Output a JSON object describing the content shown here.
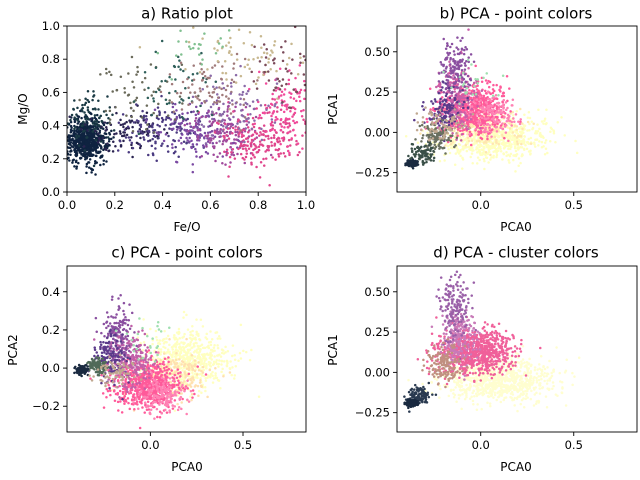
{
  "chart_data": [
    {
      "id": "a",
      "type": "scatter",
      "title": "a) Ratio plot",
      "xlabel": "Fe/O",
      "ylabel": "Mg/O",
      "xlim": [
        0.0,
        1.0
      ],
      "ylim": [
        0.0,
        1.0
      ],
      "xticks": [
        0.0,
        0.2,
        0.4,
        0.6,
        0.8,
        1.0
      ],
      "xtick_labels": [
        "0.0",
        "0.2",
        "0.4",
        "0.6",
        "0.8",
        "1.0"
      ],
      "yticks": [
        0.0,
        0.2,
        0.4,
        0.6,
        0.8,
        1.0
      ],
      "ytick_labels": [
        "0.0",
        "0.2",
        "0.4",
        "0.6",
        "0.8",
        "1.0"
      ],
      "grid": false,
      "coloring": "point colors",
      "clusters": [
        {
          "color": "#0f2340",
          "x": 0.08,
          "y": 0.31,
          "sx": 0.045,
          "sy": 0.065,
          "n": 650
        },
        {
          "color": "#1b3b45",
          "x": 0.1,
          "y": 0.46,
          "sx": 0.05,
          "sy": 0.09,
          "n": 90
        },
        {
          "color": "#2a2350",
          "x": 0.25,
          "y": 0.36,
          "sx": 0.08,
          "sy": 0.06,
          "n": 90
        },
        {
          "color": "#4a3a80",
          "x": 0.4,
          "y": 0.38,
          "sx": 0.08,
          "sy": 0.08,
          "n": 130
        },
        {
          "color": "#7b4aa3",
          "x": 0.55,
          "y": 0.36,
          "sx": 0.08,
          "sy": 0.08,
          "n": 150
        },
        {
          "color": "#a04a9c",
          "x": 0.66,
          "y": 0.36,
          "sx": 0.08,
          "sy": 0.09,
          "n": 130
        },
        {
          "color": "#e0458c",
          "x": 0.82,
          "y": 0.33,
          "sx": 0.1,
          "sy": 0.09,
          "n": 200
        },
        {
          "color": "#f04a9a",
          "x": 0.92,
          "y": 0.5,
          "sx": 0.06,
          "sy": 0.13,
          "n": 120
        },
        {
          "color": "#6a6a5a",
          "x": 0.3,
          "y": 0.58,
          "sx": 0.1,
          "sy": 0.1,
          "n": 60
        },
        {
          "color": "#2f5f5a",
          "x": 0.45,
          "y": 0.62,
          "sx": 0.08,
          "sy": 0.1,
          "n": 50
        },
        {
          "color": "#a07a7a",
          "x": 0.6,
          "y": 0.64,
          "sx": 0.09,
          "sy": 0.1,
          "n": 80
        },
        {
          "color": "#8a6aa8",
          "x": 0.7,
          "y": 0.5,
          "sx": 0.09,
          "sy": 0.1,
          "n": 80
        },
        {
          "color": "#c8b890",
          "x": 0.75,
          "y": 0.82,
          "sx": 0.12,
          "sy": 0.1,
          "n": 70
        },
        {
          "color": "#80c090",
          "x": 0.55,
          "y": 0.88,
          "sx": 0.1,
          "sy": 0.08,
          "n": 25
        },
        {
          "color": "#7a4a5a",
          "x": 0.9,
          "y": 0.72,
          "sx": 0.07,
          "sy": 0.12,
          "n": 50
        }
      ]
    },
    {
      "id": "b",
      "type": "scatter",
      "title": "b) PCA - point colors",
      "xlabel": "PCA0",
      "ylabel": "PCA1",
      "xlim": [
        -0.45,
        0.84
      ],
      "ylim": [
        -0.37,
        0.66
      ],
      "xticks": [
        0.0,
        0.5
      ],
      "xtick_labels": [
        "0.0",
        "0.5"
      ],
      "yticks": [
        -0.25,
        0.0,
        0.25,
        0.5
      ],
      "ytick_labels": [
        "−0.25",
        "0.00",
        "0.25",
        "0.50"
      ],
      "grid": false,
      "coloring": "point colors",
      "clusters": [
        {
          "color": "#ffffc0",
          "x": 0.07,
          "y": -0.03,
          "sx": 0.14,
          "sy": 0.07,
          "n": 750
        },
        {
          "color": "#ffe6b0",
          "x": 0.02,
          "y": 0.03,
          "sx": 0.1,
          "sy": 0.06,
          "n": 200
        },
        {
          "color": "#ff5a9a",
          "x": -0.05,
          "y": 0.14,
          "sx": 0.09,
          "sy": 0.08,
          "n": 650
        },
        {
          "color": "#ff82b4",
          "x": 0.05,
          "y": 0.12,
          "sx": 0.08,
          "sy": 0.06,
          "n": 150
        },
        {
          "color": "#c860a8",
          "x": -0.13,
          "y": 0.22,
          "sx": 0.05,
          "sy": 0.1,
          "n": 200
        },
        {
          "color": "#8a50a0",
          "x": -0.14,
          "y": 0.4,
          "sx": 0.04,
          "sy": 0.1,
          "n": 150
        },
        {
          "color": "#5a3a8a",
          "x": -0.2,
          "y": 0.15,
          "sx": 0.05,
          "sy": 0.07,
          "n": 120
        },
        {
          "color": "#6a7060",
          "x": -0.24,
          "y": -0.03,
          "sx": 0.04,
          "sy": 0.04,
          "n": 120
        },
        {
          "color": "#3a5048",
          "x": -0.31,
          "y": -0.13,
          "sx": 0.03,
          "sy": 0.03,
          "n": 90
        },
        {
          "color": "#1a2a40",
          "x": -0.37,
          "y": -0.19,
          "sx": 0.015,
          "sy": 0.01,
          "n": 160
        },
        {
          "color": "#c0a890",
          "x": -0.2,
          "y": 0.05,
          "sx": 0.06,
          "sy": 0.05,
          "n": 80
        },
        {
          "color": "#a0e0b0",
          "x": -0.08,
          "y": 0.3,
          "sx": 0.06,
          "sy": 0.08,
          "n": 25
        }
      ]
    },
    {
      "id": "c",
      "type": "scatter",
      "title": "c) PCA - point colors",
      "xlabel": "PCA0",
      "ylabel": "PCA2",
      "xlim": [
        -0.45,
        0.84
      ],
      "ylim": [
        -0.335,
        0.535
      ],
      "xticks": [
        0.0,
        0.5
      ],
      "xtick_labels": [
        "0.0",
        "0.5"
      ],
      "yticks": [
        -0.2,
        0.0,
        0.2,
        0.4
      ],
      "ytick_labels": [
        "−0.2",
        "0.0",
        "0.2",
        "0.4"
      ],
      "grid": false,
      "coloring": "point colors",
      "clusters": [
        {
          "color": "#ffffc0",
          "x": 0.2,
          "y": 0.04,
          "sx": 0.12,
          "sy": 0.08,
          "n": 650
        },
        {
          "color": "#ffe0b0",
          "x": 0.13,
          "y": -0.05,
          "sx": 0.1,
          "sy": 0.06,
          "n": 200
        },
        {
          "color": "#ff5a9a",
          "x": -0.02,
          "y": -0.09,
          "sx": 0.09,
          "sy": 0.06,
          "n": 700
        },
        {
          "color": "#ff82b4",
          "x": 0.06,
          "y": -0.14,
          "sx": 0.07,
          "sy": 0.05,
          "n": 150
        },
        {
          "color": "#c060a8",
          "x": -0.11,
          "y": 0.04,
          "sx": 0.06,
          "sy": 0.07,
          "n": 250
        },
        {
          "color": "#8a50a0",
          "x": -0.18,
          "y": 0.17,
          "sx": 0.04,
          "sy": 0.09,
          "n": 150
        },
        {
          "color": "#5a3a8a",
          "x": -0.22,
          "y": 0.06,
          "sx": 0.04,
          "sy": 0.06,
          "n": 120
        },
        {
          "color": "#506a58",
          "x": -0.29,
          "y": 0.01,
          "sx": 0.03,
          "sy": 0.02,
          "n": 110
        },
        {
          "color": "#1a2a40",
          "x": -0.37,
          "y": -0.01,
          "sx": 0.015,
          "sy": 0.01,
          "n": 160
        },
        {
          "color": "#c0a890",
          "x": -0.18,
          "y": -0.02,
          "sx": 0.06,
          "sy": 0.04,
          "n": 80
        },
        {
          "color": "#a0e0b0",
          "x": 0.0,
          "y": 0.15,
          "sx": 0.06,
          "sy": 0.06,
          "n": 25
        }
      ]
    },
    {
      "id": "d",
      "type": "scatter",
      "title": "d) PCA - cluster colors",
      "xlabel": "PCA0",
      "ylabel": "PCA1",
      "xlim": [
        -0.45,
        0.84
      ],
      "ylim": [
        -0.37,
        0.66
      ],
      "xticks": [
        0.0,
        0.5
      ],
      "xtick_labels": [
        "0.0",
        "0.5"
      ],
      "yticks": [
        -0.25,
        0.0,
        0.25,
        0.5
      ],
      "ytick_labels": [
        "−0.25",
        "0.00",
        "0.25",
        "0.50"
      ],
      "grid": false,
      "coloring": "cluster colors",
      "clusters": [
        {
          "color": "#fffed0",
          "x": 0.09,
          "y": -0.04,
          "sx": 0.15,
          "sy": 0.07,
          "n": 900
        },
        {
          "color": "#f0609a",
          "x": -0.03,
          "y": 0.13,
          "sx": 0.1,
          "sy": 0.07,
          "n": 800
        },
        {
          "color": "#c87ab8",
          "x": -0.12,
          "y": 0.22,
          "sx": 0.05,
          "sy": 0.08,
          "n": 200
        },
        {
          "color": "#9a60a8",
          "x": -0.14,
          "y": 0.4,
          "sx": 0.04,
          "sy": 0.1,
          "n": 160
        },
        {
          "color": "#c09080",
          "x": -0.2,
          "y": 0.05,
          "sx": 0.05,
          "sy": 0.06,
          "n": 140
        },
        {
          "color": "#2a3a50",
          "x": -0.33,
          "y": -0.15,
          "sx": 0.03,
          "sy": 0.03,
          "n": 110
        },
        {
          "color": "#1a2a40",
          "x": -0.37,
          "y": -0.19,
          "sx": 0.015,
          "sy": 0.01,
          "n": 160
        }
      ]
    }
  ]
}
